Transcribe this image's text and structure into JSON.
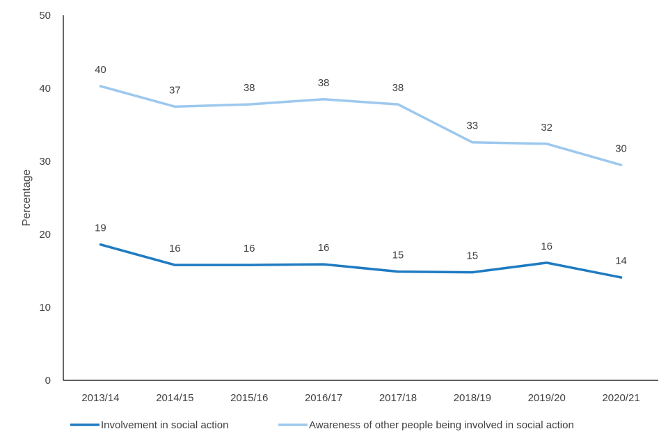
{
  "chart_data": {
    "type": "line",
    "title": "",
    "xlabel": "",
    "ylabel": "Percentage",
    "ylim": [
      0,
      50
    ],
    "y_ticks": [
      "0",
      "10",
      "20",
      "30",
      "40",
      "50"
    ],
    "grid": false,
    "legend_position": "bottom",
    "categories": [
      "2013/14",
      "2014/15",
      "2015/16",
      "2016/17",
      "2017/18",
      "2018/19",
      "2019/20",
      "2020/21"
    ],
    "series": [
      {
        "name": "Involvement in social action",
        "color": "#1F7BC1",
        "values": [
          18.6,
          15.8,
          15.8,
          15.9,
          14.9,
          14.8,
          16.1,
          14.1
        ],
        "labels": [
          "19",
          "16",
          "16",
          "16",
          "15",
          "15",
          "16",
          "14"
        ]
      },
      {
        "name": "Awareness of other people being involved in social action",
        "color": "#9DC8EE",
        "values": [
          40.3,
          37.5,
          37.8,
          38.5,
          37.8,
          32.6,
          32.4,
          29.5
        ],
        "labels": [
          "40",
          "37",
          "38",
          "38",
          "38",
          "33",
          "32",
          "30"
        ]
      }
    ]
  }
}
